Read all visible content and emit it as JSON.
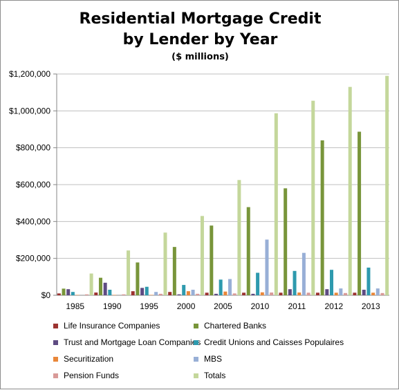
{
  "chart_data": {
    "type": "bar",
    "title": "Residential Mortgage Credit",
    "title_line2": "by Lender by Year",
    "subtitle": "($ millions)",
    "categories": [
      "1985",
      "1990",
      "1995",
      "2000",
      "2005",
      "2010",
      "2011",
      "2012",
      "2013"
    ],
    "ylim": [
      0,
      1200000
    ],
    "yticks": [
      "$0",
      "$200,000",
      "$400,000",
      "$600,000",
      "$800,000",
      "$1,000,000",
      "$1,200,000"
    ],
    "grid": true,
    "legend_position": "bottom",
    "series": [
      {
        "name": "Life Insurance Companies",
        "color": "#9c3330",
        "values": [
          10000,
          15000,
          22000,
          18000,
          14000,
          14000,
          14000,
          14000,
          14000
        ]
      },
      {
        "name": "Chartered Banks",
        "color": "#78953a",
        "values": [
          36000,
          95000,
          178000,
          262000,
          378000,
          478000,
          580000,
          840000,
          887000
        ]
      },
      {
        "name": "Trust and Mortgage Loan Companies",
        "color": "#5e4b82",
        "values": [
          33000,
          68000,
          40000,
          5000,
          8000,
          8000,
          33000,
          33000,
          30000
        ]
      },
      {
        "name": "Credit Unions and Caisses Populaires",
        "color": "#2e9aae",
        "values": [
          18000,
          30000,
          46000,
          56000,
          85000,
          122000,
          132000,
          138000,
          150000
        ]
      },
      {
        "name": "Securitization",
        "color": "#e9873a",
        "values": [
          2000,
          2000,
          2000,
          22000,
          20000,
          16000,
          15000,
          14000,
          14000
        ]
      },
      {
        "name": "MBS",
        "color": "#98afd6",
        "values": [
          0,
          0,
          18000,
          30000,
          88000,
          302000,
          230000,
          37000,
          37000
        ]
      },
      {
        "name": "Pension Funds",
        "color": "#d99a98",
        "values": [
          5000,
          5000,
          8000,
          8000,
          10000,
          15000,
          14000,
          12000,
          12000
        ]
      },
      {
        "name": "Totals",
        "color": "#c4d79b",
        "values": [
          118000,
          243000,
          340000,
          430000,
          625000,
          987000,
          1055000,
          1130000,
          1190000
        ]
      }
    ]
  }
}
